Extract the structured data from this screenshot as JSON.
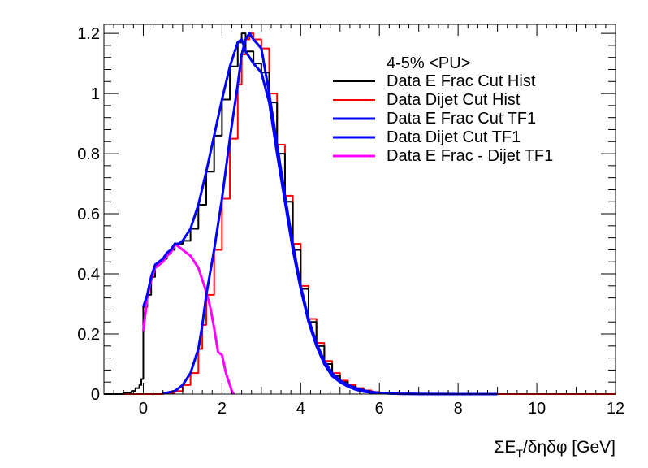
{
  "chart_data": {
    "type": "line",
    "title": "",
    "xlabel": "ΣE_T/δηδφ [GeV]",
    "xlabel_parts": {
      "sigma": "ΣE",
      "sub": "T",
      "rest": "/δηδφ [GeV]"
    },
    "ylabel": "",
    "xlim": [
      -1,
      12
    ],
    "ylim": [
      0,
      1.23
    ],
    "x_ticks": [
      0,
      2,
      4,
      6,
      8,
      10,
      12
    ],
    "x_tick_labels": [
      "0",
      "2",
      "4",
      "6",
      "8",
      "10",
      "12"
    ],
    "y_ticks": [
      0,
      0.2,
      0.4,
      0.6,
      0.8,
      1.0,
      1.2
    ],
    "y_tick_labels": [
      "0",
      "0.2",
      "0.4",
      "0.6",
      "0.8",
      "1",
      "1.2"
    ],
    "grid": false,
    "legend_placement": "top-right",
    "legend_title": "4-5% <PU>",
    "series": [
      {
        "name": "Data E Frac Cut Hist",
        "color": "#000000",
        "style": "step",
        "x": [
          -1,
          -0.5,
          -0.3,
          -0.2,
          -0.1,
          -0.05,
          0,
          0.1,
          0.2,
          0.3,
          0.4,
          0.5,
          0.6,
          0.7,
          0.8,
          0.9,
          1.0,
          1.2,
          1.4,
          1.6,
          1.8,
          2.0,
          2.2,
          2.4,
          2.5,
          2.6,
          2.8,
          3.0,
          3.2,
          3.4,
          3.6,
          3.8,
          4.0,
          4.2,
          4.4,
          4.6,
          4.8,
          5.0,
          5.2,
          5.4,
          5.6,
          5.8,
          6.0,
          6.5,
          7.0,
          8.0,
          9.0
        ],
        "y": [
          0,
          0.005,
          0.01,
          0.02,
          0.03,
          0.05,
          0.29,
          0.33,
          0.39,
          0.43,
          0.44,
          0.45,
          0.47,
          0.48,
          0.5,
          0.5,
          0.51,
          0.55,
          0.63,
          0.74,
          0.86,
          0.98,
          1.09,
          1.17,
          1.2,
          1.14,
          1.1,
          1.07,
          0.97,
          0.8,
          0.64,
          0.48,
          0.35,
          0.24,
          0.16,
          0.1,
          0.06,
          0.04,
          0.025,
          0.015,
          0.008,
          0.005,
          0.003,
          0.001,
          0.0005,
          0,
          0
        ]
      },
      {
        "name": "Data Dijet Cut Hist",
        "color": "#ff0000",
        "style": "step",
        "x": [
          -1,
          0.5,
          0.8,
          1.0,
          1.2,
          1.4,
          1.5,
          1.6,
          1.8,
          2.0,
          2.2,
          2.4,
          2.5,
          2.6,
          2.7,
          2.8,
          3.0,
          3.2,
          3.4,
          3.6,
          3.8,
          4.0,
          4.2,
          4.4,
          4.6,
          4.8,
          5.0,
          5.2,
          5.4,
          5.6,
          5.8,
          6.0,
          6.5,
          7.0,
          8.0,
          9.0,
          12.0
        ],
        "y": [
          0,
          0.002,
          0.01,
          0.03,
          0.07,
          0.15,
          0.23,
          0.33,
          0.48,
          0.65,
          0.85,
          1.03,
          1.13,
          1.18,
          1.2,
          1.18,
          1.15,
          1.0,
          0.83,
          0.66,
          0.5,
          0.36,
          0.25,
          0.17,
          0.11,
          0.07,
          0.045,
          0.03,
          0.02,
          0.012,
          0.007,
          0.004,
          0.001,
          0.0005,
          0,
          0,
          0
        ]
      },
      {
        "name": "Data E Frac Cut TF1",
        "color": "#0000ff",
        "style": "line",
        "x": [
          0,
          0.1,
          0.2,
          0.3,
          0.4,
          0.5,
          0.6,
          0.7,
          0.8,
          0.9,
          1.0,
          1.2,
          1.4,
          1.6,
          1.8,
          2.0,
          2.2,
          2.4,
          2.5,
          2.6,
          2.8,
          3.0,
          3.2,
          3.4,
          3.6,
          3.8,
          4.0,
          4.2,
          4.4,
          4.6,
          4.8,
          5.0,
          5.2,
          5.4,
          5.6,
          5.8,
          6.0,
          6.5,
          7.0,
          8.0,
          9.0
        ],
        "y": [
          0.29,
          0.33,
          0.39,
          0.43,
          0.44,
          0.45,
          0.47,
          0.48,
          0.5,
          0.5,
          0.51,
          0.55,
          0.63,
          0.74,
          0.86,
          0.98,
          1.09,
          1.17,
          1.18,
          1.14,
          1.1,
          1.07,
          0.97,
          0.8,
          0.64,
          0.48,
          0.35,
          0.24,
          0.16,
          0.1,
          0.06,
          0.04,
          0.025,
          0.015,
          0.008,
          0.005,
          0.003,
          0.001,
          0.0005,
          0,
          0
        ]
      },
      {
        "name": "Data Dijet Cut TF1",
        "color": "#0000ff",
        "style": "line",
        "x": [
          0.5,
          0.8,
          1.0,
          1.2,
          1.4,
          1.5,
          1.6,
          1.8,
          2.0,
          2.2,
          2.4,
          2.5,
          2.6,
          2.7,
          2.8,
          3.0,
          3.2,
          3.4,
          3.6,
          3.8,
          4.0,
          4.2,
          4.4,
          4.6,
          4.8,
          5.0,
          5.2,
          5.4,
          5.6,
          5.8,
          6.0,
          6.5,
          7.0,
          8.0,
          9.0
        ],
        "y": [
          0.002,
          0.01,
          0.03,
          0.07,
          0.15,
          0.23,
          0.33,
          0.48,
          0.65,
          0.85,
          1.03,
          1.13,
          1.18,
          1.2,
          1.18,
          1.15,
          1.0,
          0.83,
          0.66,
          0.5,
          0.36,
          0.25,
          0.17,
          0.11,
          0.07,
          0.045,
          0.03,
          0.02,
          0.012,
          0.007,
          0.004,
          0.001,
          0.0005,
          0,
          0
        ]
      },
      {
        "name": "Data E Frac - Dijet TF1",
        "color": "#ff00ff",
        "style": "line",
        "x": [
          0,
          0.1,
          0.2,
          0.3,
          0.4,
          0.5,
          0.6,
          0.7,
          0.8,
          0.9,
          1.0,
          1.1,
          1.2,
          1.3,
          1.4,
          1.5,
          1.6,
          1.7,
          1.8,
          1.9,
          2.0,
          2.1,
          2.2,
          2.25,
          2.3
        ],
        "y": [
          0.21,
          0.32,
          0.38,
          0.42,
          0.43,
          0.44,
          0.46,
          0.47,
          0.5,
          0.49,
          0.48,
          0.47,
          0.46,
          0.44,
          0.42,
          0.38,
          0.34,
          0.29,
          0.22,
          0.14,
          0.13,
          0.07,
          0.03,
          0.01,
          0
        ]
      }
    ]
  }
}
